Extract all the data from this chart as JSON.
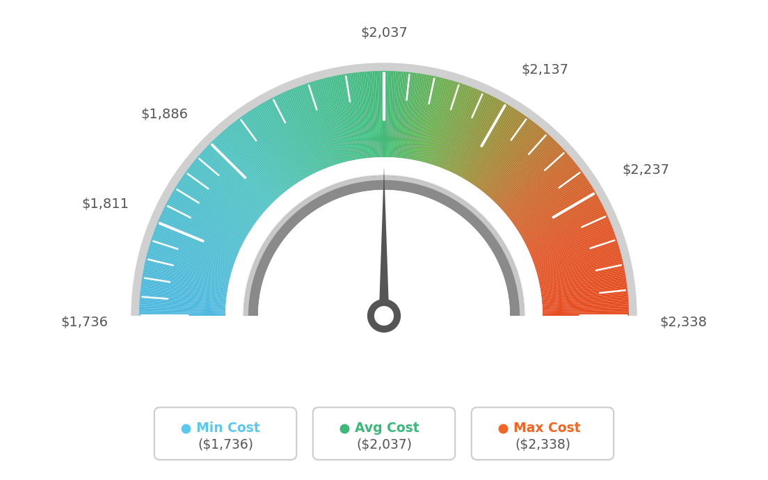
{
  "min_val": 1736,
  "max_val": 2338,
  "avg_val": 2037,
  "tick_labels": [
    "$1,736",
    "$1,811",
    "$1,886",
    "$2,037",
    "$2,137",
    "$2,237",
    "$2,338"
  ],
  "tick_values": [
    1736,
    1811,
    1886,
    2037,
    2137,
    2237,
    2338
  ],
  "legend_min_color": "#5bc8f0",
  "legend_avg_color": "#3cb87a",
  "legend_max_color": "#f26522",
  "background_color": "#ffffff",
  "needle_color": "#555555",
  "color_stops": [
    [
      0.0,
      [
        78,
        184,
        224
      ]
    ],
    [
      0.25,
      [
        80,
        195,
        195
      ]
    ],
    [
      0.42,
      [
        72,
        190,
        145
      ]
    ],
    [
      0.5,
      [
        68,
        185,
        120
      ]
    ],
    [
      0.58,
      [
        110,
        175,
        80
      ]
    ],
    [
      0.68,
      [
        160,
        140,
        55
      ]
    ],
    [
      0.78,
      [
        205,
        105,
        45
      ]
    ],
    [
      0.88,
      [
        225,
        85,
        38
      ]
    ],
    [
      1.0,
      [
        230,
        75,
        30
      ]
    ]
  ]
}
